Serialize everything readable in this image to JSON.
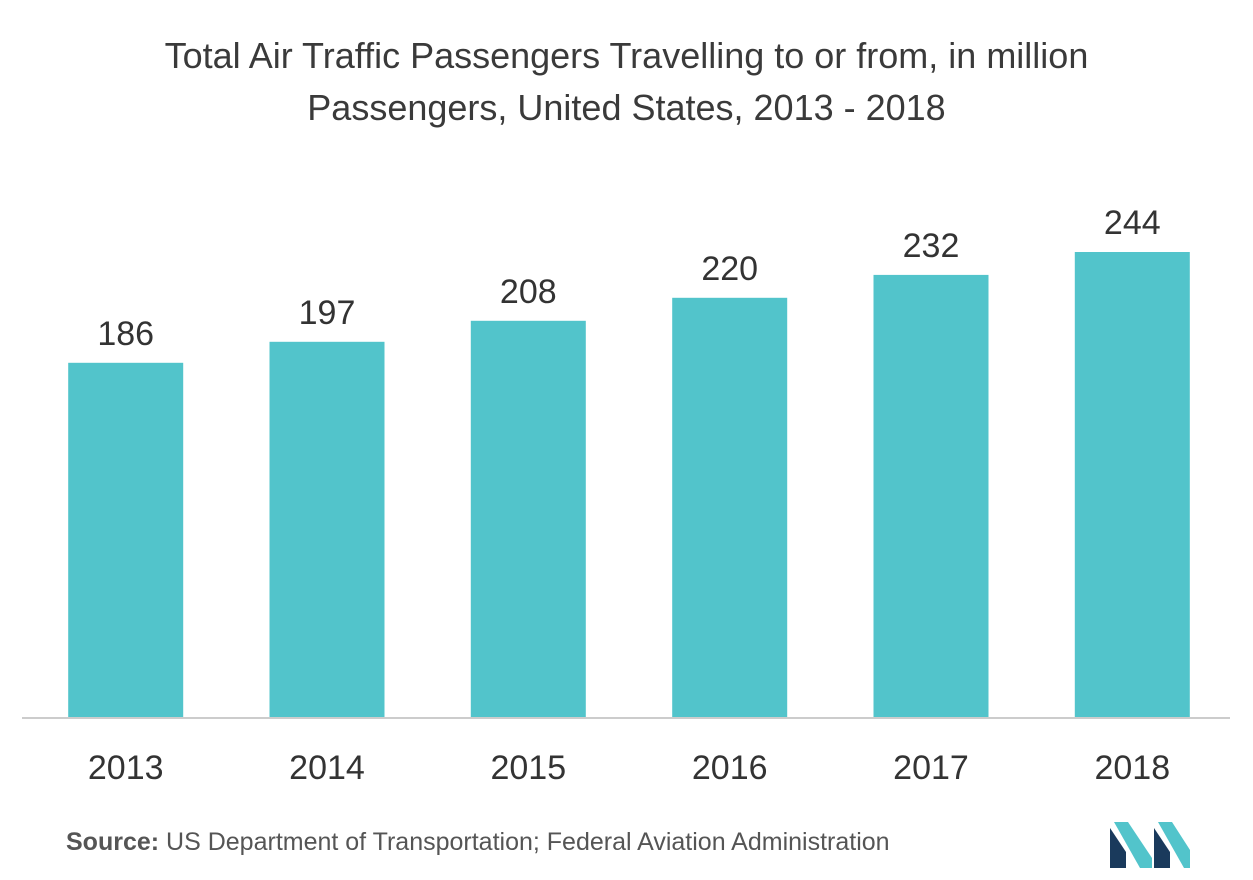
{
  "title_line1": "Total Air Traffic Passengers Travelling to or from, in million",
  "title_line2": "Passengers, United States, 2013 - 2018",
  "source_label": "Source:",
  "source_text": "US Department of Transportation; Federal Aviation Administration",
  "colors": {
    "bar": "#52c4cb",
    "axis": "#cccccc",
    "label_text": "#333333",
    "logo_dark": "#1a3a5c",
    "logo_light": "#52c4cb"
  },
  "chart_data": {
    "type": "bar",
    "categories": [
      "2013",
      "2014",
      "2015",
      "2016",
      "2017",
      "2018"
    ],
    "values": [
      186,
      197,
      208,
      220,
      232,
      244
    ],
    "data_labels": [
      "186",
      "197",
      "208",
      "220",
      "232",
      "244"
    ],
    "title": "Total Air Traffic Passengers Travelling to or from, in million Passengers, United States, 2013 - 2018",
    "xlabel": "",
    "ylabel": "",
    "ylim": [
      0,
      244
    ],
    "grid": false,
    "legend": "none"
  }
}
